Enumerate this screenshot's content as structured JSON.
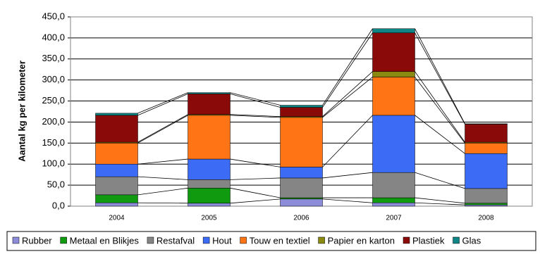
{
  "chart_data": {
    "type": "stacked_bar",
    "y_label": "Aantal kg per kilometer",
    "categories": [
      "2004",
      "2005",
      "2006",
      "2007",
      "2008"
    ],
    "series": [
      {
        "name": "Rubber",
        "color": "#8c8cd9",
        "values": [
          8,
          7,
          17,
          8,
          3
        ]
      },
      {
        "name": "Metaal en Blikjes",
        "color": "#109a10",
        "values": [
          19,
          36,
          3,
          12,
          4
        ]
      },
      {
        "name": "Restafval",
        "color": "#858585",
        "values": [
          43,
          20,
          47,
          60,
          35
        ]
      },
      {
        "name": "Hout",
        "color": "#3c6cf5",
        "values": [
          30,
          49,
          26,
          136,
          83
        ]
      },
      {
        "name": "Touw en textiel",
        "color": "#ff7415",
        "values": [
          50,
          104,
          118,
          91,
          25
        ]
      },
      {
        "name": "Papier en karton",
        "color": "#8a8a10",
        "values": [
          2,
          2,
          2,
          13,
          2
        ]
      },
      {
        "name": "Plastiek",
        "color": "#8a0a0a",
        "values": [
          64,
          49,
          22,
          92,
          43
        ]
      },
      {
        "name": "Glas",
        "color": "#0f8585",
        "values": [
          5,
          3,
          5,
          10,
          1
        ]
      }
    ],
    "ylim": [
      0,
      450
    ],
    "yticks": [
      {
        "value": 0,
        "label": "0,0"
      },
      {
        "value": 50,
        "label": "50,0"
      },
      {
        "value": 100,
        "label": "100,0"
      },
      {
        "value": 150,
        "label": "150,0"
      },
      {
        "value": 200,
        "label": "200,0"
      },
      {
        "value": 250,
        "label": "250,0"
      },
      {
        "value": 300,
        "label": "300,0"
      },
      {
        "value": 350,
        "label": "350,0"
      },
      {
        "value": 400,
        "label": "400,0"
      },
      {
        "value": 450,
        "label": "450,0"
      }
    ],
    "grid": true,
    "series_lines": true,
    "legend": "bottom"
  }
}
